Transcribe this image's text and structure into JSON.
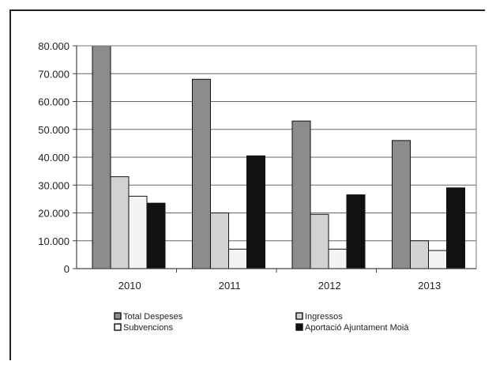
{
  "chart_data": {
    "type": "bar",
    "title": "",
    "xlabel": "",
    "ylabel": "",
    "categories": [
      "2010",
      "2011",
      "2012",
      "2013"
    ],
    "ylim": [
      0,
      80000
    ],
    "yticks": [
      0,
      10000,
      20000,
      30000,
      40000,
      50000,
      60000,
      70000,
      80000
    ],
    "ytick_labels": [
      "0",
      "10.000",
      "20.000",
      "30.000",
      "40.000",
      "50.000",
      "60.000",
      "70.000",
      "80.000"
    ],
    "grid": true,
    "legend": "bottom",
    "series": [
      {
        "name": "Total Despeses",
        "color": "#8c8c8c",
        "values": [
          80000,
          68000,
          53000,
          46000
        ]
      },
      {
        "name": "Ingressos",
        "color": "#d2d2d2",
        "values": [
          33000,
          20000,
          19500,
          10000
        ]
      },
      {
        "name": "Subvencions",
        "color": "#f4f4f4",
        "values": [
          26000,
          7000,
          7000,
          6500
        ]
      },
      {
        "name": "Aportació Ajuntament Moià",
        "color": "#111111",
        "values": [
          23500,
          40500,
          26500,
          29000
        ]
      }
    ]
  }
}
